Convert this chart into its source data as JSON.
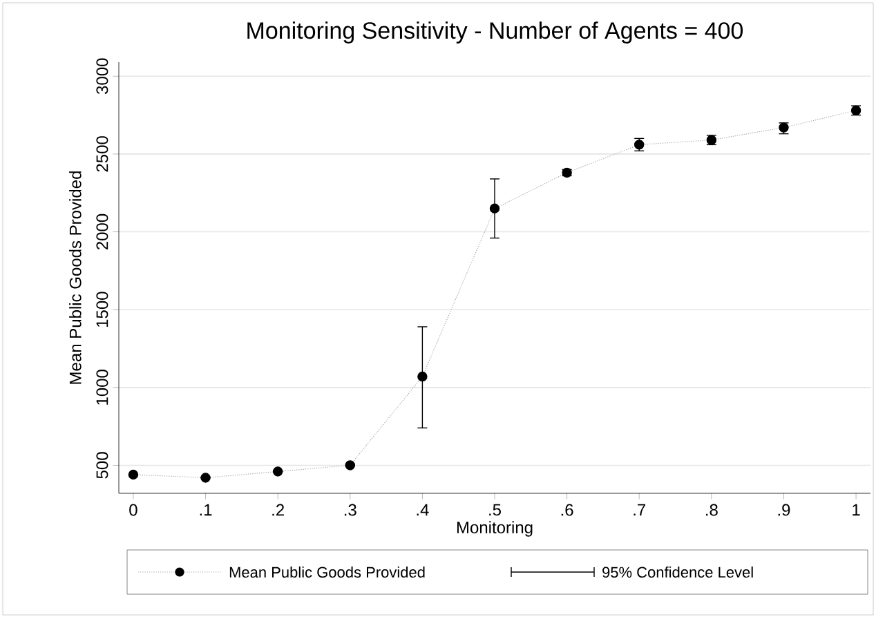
{
  "chart_data": {
    "type": "line",
    "title": "Monitoring Sensitivity - Number of Agents = 400",
    "xlabel": "Monitoring",
    "ylabel": "Mean Public Goods Provided",
    "x": [
      0,
      0.1,
      0.2,
      0.3,
      0.4,
      0.5,
      0.6,
      0.7,
      0.8,
      0.9,
      1
    ],
    "series": [
      {
        "name": "Mean Public Goods Provided",
        "color": "#000000",
        "values": [
          440,
          420,
          460,
          500,
          1070,
          2150,
          2380,
          2560,
          2590,
          2670,
          2780
        ],
        "errors": [
          null,
          null,
          null,
          null,
          [
            740,
            1390
          ],
          [
            1960,
            2340
          ],
          [
            2360,
            2400
          ],
          [
            2520,
            2600
          ],
          [
            2560,
            2620
          ],
          [
            2630,
            2700
          ],
          [
            2750,
            2810
          ]
        ]
      }
    ],
    "annotations": [
      "95% Confidence Level"
    ],
    "xlim": [
      -0.02,
      1.02
    ],
    "ylim": [
      320,
      3090
    ],
    "xticks": [
      0,
      {
        "value": 0.1,
        "label": ".1"
      },
      {
        "value": 0.2,
        "label": ".2"
      },
      {
        "value": 0.3,
        "label": ".3"
      },
      {
        "value": 0.4,
        "label": ".4"
      },
      {
        "value": 0.5,
        "label": ".5"
      },
      {
        "value": 0.6,
        "label": ".6"
      },
      {
        "value": 0.7,
        "label": ".7"
      },
      {
        "value": 0.8,
        "label": ".8"
      },
      {
        "value": 0.9,
        "label": ".9"
      },
      1
    ],
    "yticks": [
      500,
      1000,
      1500,
      2000,
      2500,
      3000
    ],
    "grid": "y",
    "legend": "bottom",
    "marker": "circle",
    "line_style": "dotted"
  }
}
